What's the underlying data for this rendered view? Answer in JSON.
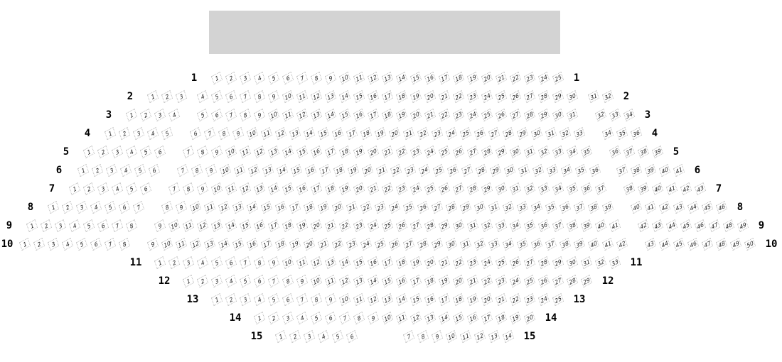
{
  "stage": {
    "color": "#d3d3d3"
  },
  "rows": [
    {
      "label": "1",
      "segments": [
        [
          1,
          25
        ]
      ]
    },
    {
      "label": "2",
      "segments": [
        [
          1,
          3
        ],
        [
          4,
          30
        ],
        [
          31,
          32
        ]
      ]
    },
    {
      "label": "3",
      "segments": [
        [
          1,
          4
        ],
        [
          5,
          31
        ],
        [
          32,
          34
        ]
      ]
    },
    {
      "label": "4",
      "segments": [
        [
          1,
          5
        ],
        [
          6,
          33
        ],
        [
          34,
          36
        ]
      ]
    },
    {
      "label": "5",
      "segments": [
        [
          1,
          6
        ],
        [
          7,
          35
        ],
        [
          36,
          39
        ]
      ]
    },
    {
      "label": "6",
      "segments": [
        [
          1,
          6
        ],
        [
          7,
          36
        ],
        [
          37,
          41
        ]
      ]
    },
    {
      "label": "7",
      "segments": [
        [
          1,
          6
        ],
        [
          7,
          37
        ],
        [
          38,
          43
        ]
      ]
    },
    {
      "label": "8",
      "segments": [
        [
          1,
          7
        ],
        [
          8,
          39
        ],
        [
          40,
          46
        ]
      ]
    },
    {
      "label": "9",
      "segments": [
        [
          1,
          8
        ],
        [
          9,
          41
        ],
        [
          42,
          49
        ]
      ]
    },
    {
      "label": "10",
      "segments": [
        [
          1,
          8
        ],
        [
          9,
          42
        ],
        [
          43,
          50
        ]
      ]
    },
    {
      "label": "11",
      "segments": [
        [
          1,
          33
        ]
      ]
    },
    {
      "label": "12",
      "segments": [
        [
          1,
          29
        ]
      ]
    },
    {
      "label": "13",
      "segments": [
        [
          1,
          25
        ]
      ]
    },
    {
      "label": "14",
      "segments": [
        [
          1,
          20
        ]
      ]
    },
    {
      "label": "15",
      "segments": [
        [
          1,
          6
        ],
        [
          7,
          14
        ]
      ]
    }
  ]
}
